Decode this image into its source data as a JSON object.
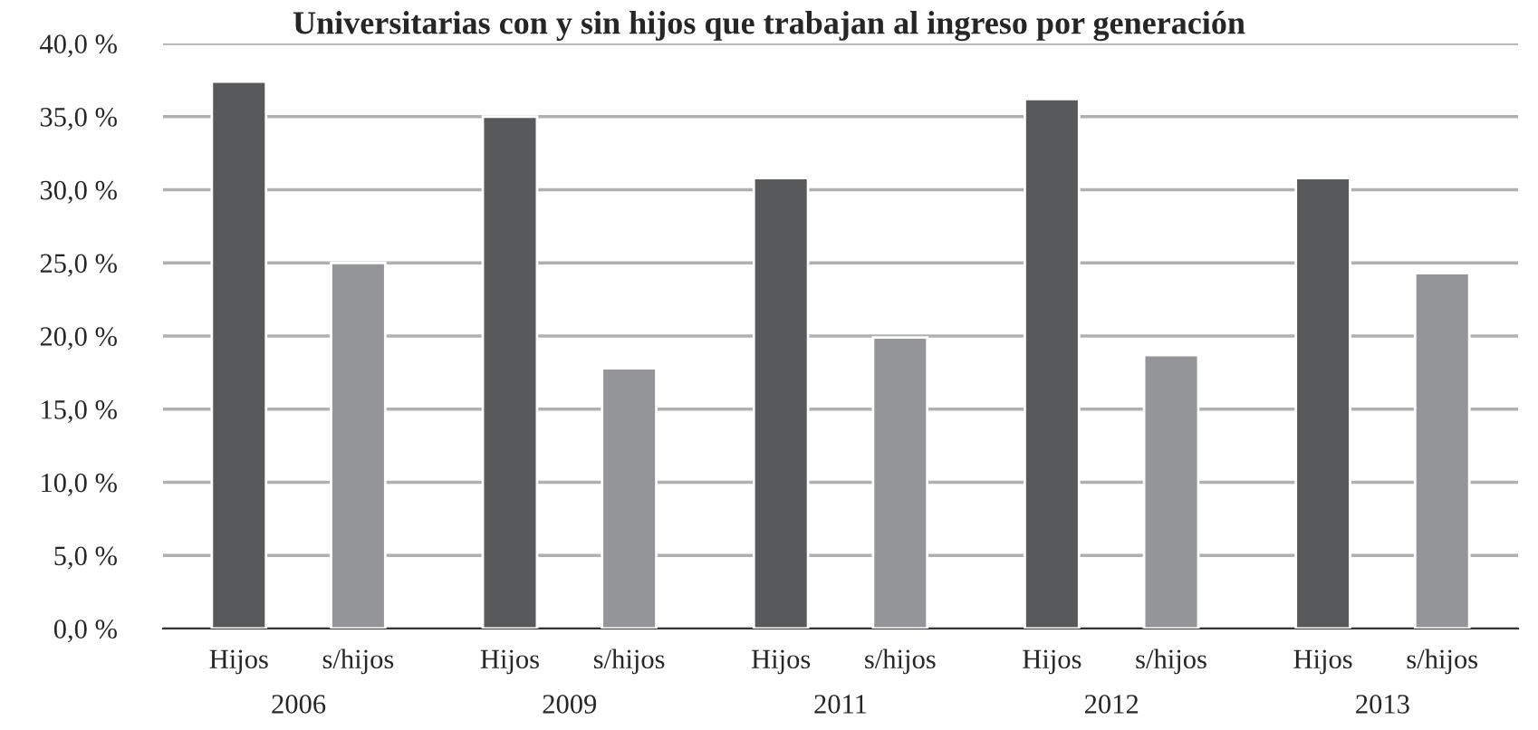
{
  "chart_data": {
    "type": "bar",
    "title": "Universitarias con y sin hijos que trabajan al ingreso por generación",
    "categories": [
      "2006",
      "2009",
      "2011",
      "2012",
      "2013"
    ],
    "series": [
      {
        "name": "Hijos",
        "color": "#58595b",
        "values": [
          37.4,
          35.0,
          30.8,
          36.2,
          30.8
        ]
      },
      {
        "name": "s/hijos",
        "color": "#949598",
        "values": [
          25.0,
          17.8,
          19.9,
          18.7,
          24.3
        ]
      }
    ],
    "ylim": [
      0,
      40
    ],
    "yticks": [
      {
        "value": 0,
        "label": "0,0 %"
      },
      {
        "value": 5,
        "label": "5,0 %"
      },
      {
        "value": 10,
        "label": "10,0 %"
      },
      {
        "value": 15,
        "label": "15,0 %"
      },
      {
        "value": 20,
        "label": "20,0 %"
      },
      {
        "value": 25,
        "label": "25,0 %"
      },
      {
        "value": 30,
        "label": "30,0 %"
      },
      {
        "value": 35,
        "label": "35,0 %"
      },
      {
        "value": 40,
        "label": "40,0 %"
      }
    ],
    "grid": "y",
    "legend": false
  }
}
